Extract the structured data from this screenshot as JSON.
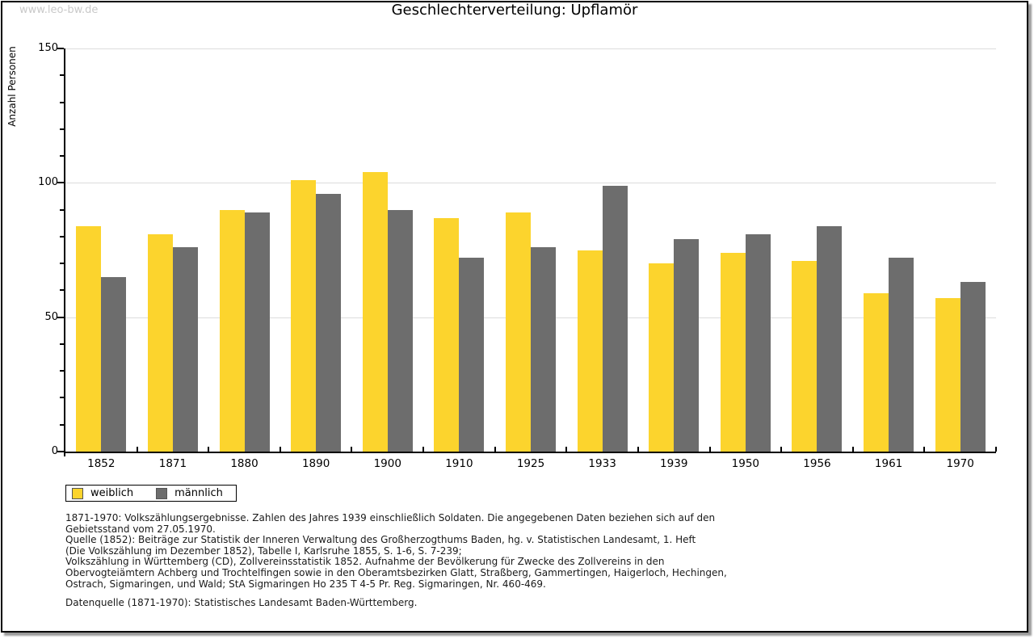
{
  "watermark": "www.leo-bw.de",
  "title": "Geschlechterverteilung: Upflamör",
  "chart_data": {
    "type": "bar",
    "title": "Geschlechterverteilung: Upflamör",
    "xlabel": "",
    "ylabel": "Anzahl Personen",
    "ylim": [
      0,
      150
    ],
    "yticks": [
      0,
      50,
      100,
      150
    ],
    "minor_tick_step": 10,
    "grid": true,
    "legend_position": "bottom-left",
    "categories": [
      "1852",
      "1871",
      "1880",
      "1890",
      "1900",
      "1910",
      "1925",
      "1933",
      "1939",
      "1950",
      "1956",
      "1961",
      "1970"
    ],
    "series": [
      {
        "name": "weiblich",
        "color": "#FCD42D",
        "values": [
          84,
          81,
          90,
          101,
          104,
          87,
          89,
          75,
          70,
          74,
          71,
          59,
          57
        ]
      },
      {
        "name": "männlich",
        "color": "#6D6D6D",
        "values": [
          65,
          76,
          89,
          96,
          90,
          72,
          76,
          99,
          79,
          81,
          84,
          72,
          63
        ]
      }
    ]
  },
  "legend": {
    "items": [
      {
        "label": "weiblich",
        "color": "#FCD42D"
      },
      {
        "label": "männlich",
        "color": "#6D6D6D"
      }
    ]
  },
  "footnotes": {
    "lines": [
      "1871-1970: Volkszählungsergebnisse. Zahlen des Jahres 1939 einschließlich Soldaten. Die angegebenen Daten beziehen sich auf den",
      "Gebietsstand vom 27.05.1970.",
      "Quelle (1852): Beiträge zur Statistik der Inneren Verwaltung des Großherzogthums Baden, hg. v. Statistischen Landesamt, 1. Heft",
      "(Die Volkszählung im Dezember 1852), Tabelle I, Karlsruhe 1855, S. 1-6, S. 7-239;",
      "Volkszählung in Württemberg (CD), Zollvereinsstatistik 1852. Aufnahme der Bevölkerung für Zwecke des Zollvereins in den",
      "Obervogteiämtern Achberg und Trochtelfingen sowie in den Oberamtsbezirken Glatt, Straßberg, Gammertingen, Haigerloch, Hechingen,",
      "Ostrach, Sigmaringen, und Wald; StA Sigmaringen Ho 235 T 4-5 Pr. Reg. Sigmaringen, Nr. 460-469."
    ],
    "datasource": "Datenquelle (1871-1970): Statistisches Landesamt Baden-Württemberg."
  }
}
